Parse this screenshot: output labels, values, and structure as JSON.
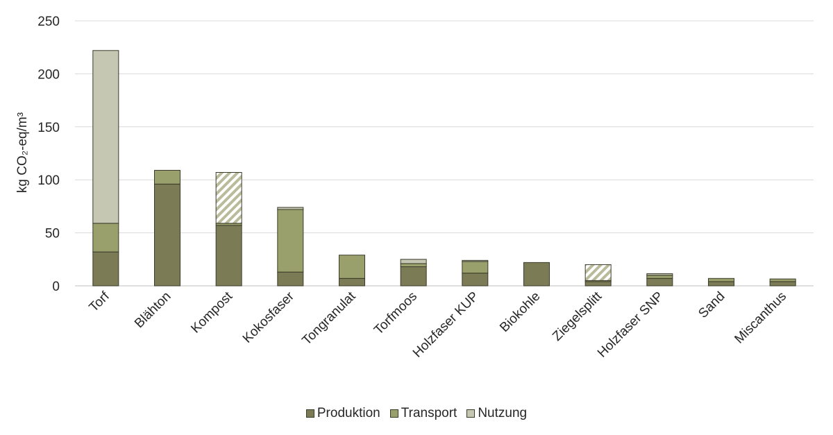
{
  "chart_data": {
    "type": "bar",
    "stacked": true,
    "categories": [
      "Torf",
      "Blähton",
      "Kompost",
      "Kokosfaser",
      "Tongranulat",
      "Torfmoos",
      "Holzfaser KUP",
      "Biokohle",
      "Ziegelsplitt",
      "Holzfaser SNP",
      "Sand",
      "Miscanthus"
    ],
    "series": [
      {
        "name": "Produktion",
        "color": "#7b7b55",
        "values": [
          32,
          96,
          57,
          13,
          7,
          18,
          12,
          22,
          4,
          7,
          4,
          4
        ]
      },
      {
        "name": "Transport",
        "color": "#9aa06b",
        "values": [
          27,
          13,
          2,
          59,
          22,
          3,
          11,
          0,
          1,
          3,
          3,
          2.5
        ]
      },
      {
        "name": "Nutzung",
        "color": "#c5c7b3",
        "values": [
          163,
          0,
          48,
          2,
          0,
          4,
          1,
          0,
          15,
          1.5,
          0,
          0
        ]
      }
    ],
    "hatched_segments": [
      {
        "category": "Kompost",
        "series": "Nutzung"
      },
      {
        "category": "Ziegelsplitt",
        "series": "Nutzung"
      }
    ],
    "ylabel": "kg CO₂-eq/m³",
    "ylim": [
      0,
      250
    ],
    "yticks": [
      0,
      50,
      100,
      150,
      200,
      250
    ],
    "grid": true,
    "legend_position": "bottom"
  }
}
